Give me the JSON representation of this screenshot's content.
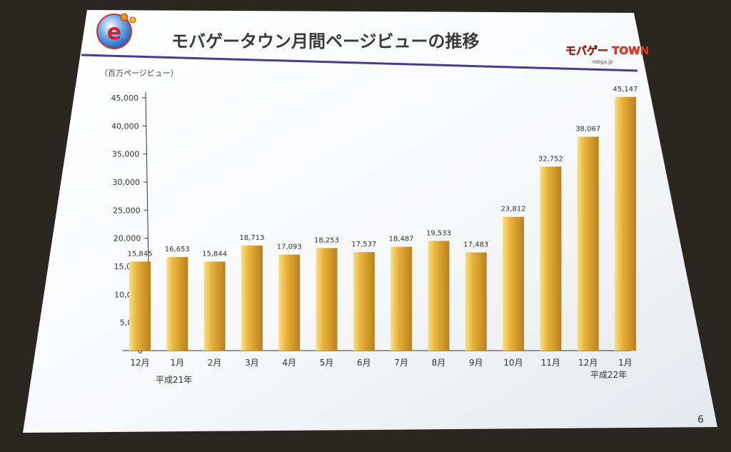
{
  "slide": {
    "title": "モバゲータウン月間ページビューの推移",
    "page_number": "6",
    "logo_left_letter": "e",
    "brand_logo_text": "モバゲー TOWN",
    "brand_logo_url": "mbga.jp"
  },
  "chart_data": {
    "type": "bar",
    "ylabel": "（百万ページビュー）",
    "ylim": [
      0,
      45000
    ],
    "yticks": [
      0,
      5000,
      10000,
      15000,
      20000,
      25000,
      30000,
      35000,
      40000,
      45000
    ],
    "ytick_labels": [
      "0",
      "5,000",
      "10,000",
      "15,000",
      "20,000",
      "25,000",
      "30,000",
      "35,000",
      "40,000",
      "45,000"
    ],
    "categories": [
      "12月",
      "1月",
      "2月",
      "3月",
      "4月",
      "5月",
      "6月",
      "7月",
      "8月",
      "9月",
      "10月",
      "11月",
      "12月",
      "1月"
    ],
    "values": [
      15845,
      16653,
      15844,
      18713,
      17093,
      18253,
      17537,
      18487,
      19533,
      17483,
      23812,
      32752,
      38067,
      45147
    ],
    "value_labels": [
      "15,845",
      "16,653",
      "15,844",
      "18,713",
      "17,093",
      "18,253",
      "17,537",
      "18,487",
      "19,533",
      "17,483",
      "23,812",
      "32,752",
      "38,067",
      "45,147"
    ],
    "era_labels": [
      "平成21年",
      "平成22年"
    ],
    "grid": false,
    "colors": {
      "bar_light": "#f8e08a",
      "bar_mid": "#e8b33a",
      "bar_dark": "#b9801c",
      "title_rule": "#4b3b8f"
    }
  }
}
